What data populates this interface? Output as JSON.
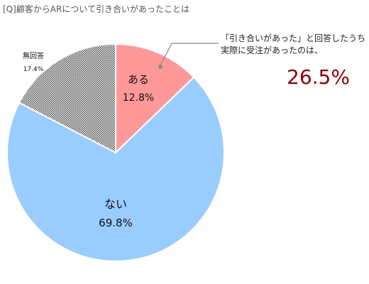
{
  "chart_data": {
    "type": "pie",
    "title": "[Q]顧客からARについて引き合いがあったことは",
    "start_angle_deg": 0,
    "direction": "clockwise",
    "slices": [
      {
        "label": "ある",
        "value": 12.8,
        "value_label": "12.8%",
        "color": "#ff9999",
        "pattern": "none"
      },
      {
        "label": "ない",
        "value": 69.8,
        "value_label": "69.8%",
        "color": "#99ccff",
        "pattern": "none"
      },
      {
        "label": "無回答",
        "value": 17.4,
        "value_label": "17.4%",
        "color": "#6b6b6b",
        "pattern": "dots"
      }
    ],
    "annotation": {
      "lines": [
        "「引き合いがあった」と回答したうち",
        "実際に受注があったのは、"
      ],
      "value": "26.5%",
      "value_color": "#8b0000",
      "points_to": "ある"
    }
  }
}
